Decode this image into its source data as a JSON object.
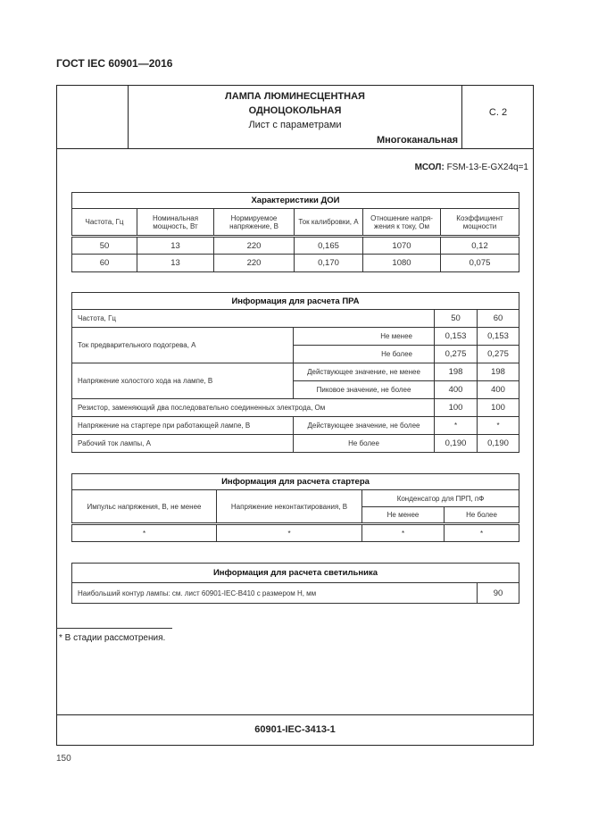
{
  "doc_id": "ГОСТ IEC 60901—2016",
  "header": {
    "title1": "ЛАМПА ЛЮМИНЕСЦЕНТНАЯ",
    "title2": "ОДНОЦОКОЛЬНАЯ",
    "subtitle": "Лист с параметрами",
    "type": "Многоканальная",
    "page": "С. 2"
  },
  "msol": {
    "label": "МСОЛ:",
    "value": "FSM-13-E-GX24q=1"
  },
  "t1": {
    "title": "Характеристики ДОИ",
    "headers": [
      "Частота, Гц",
      "Номинальная мощность, Вт",
      "Нормируемое напряжение, В",
      "Ток калибровки, А",
      "Отношение напря-жения к току, Ом",
      "Коэффициент мощности"
    ],
    "rows": [
      [
        "50",
        "13",
        "220",
        "0,165",
        "1070",
        "0,12"
      ],
      [
        "60",
        "13",
        "220",
        "0,170",
        "1080",
        "0,075"
      ]
    ]
  },
  "t2": {
    "title": "Информация для расчета ПРА",
    "freq": {
      "label": "Частота, Гц",
      "v1": "50",
      "v2": "60"
    },
    "preheat": {
      "label": "Ток предварительного подогрева, А",
      "min": "Не менее",
      "min_v1": "0,153",
      "min_v2": "0,153",
      "max": "Не более",
      "max_v1": "0,275",
      "max_v2": "0,275"
    },
    "ocv": {
      "label": "Напряжение холостого хода на лампе, В",
      "rms": "Действующее значение, не менее",
      "rms_v1": "198",
      "rms_v2": "198",
      "peak": "Пиковое значение, не более",
      "peak_v1": "400",
      "peak_v2": "400"
    },
    "resistor": {
      "label": "Резистор, заменяющий два последовательно соединенных электрода, Ом",
      "v1": "100",
      "v2": "100"
    },
    "starter_v": {
      "label": "Напряжение на стартере при работающей лампе, В",
      "cond": "Действующее значение, не более",
      "v1": "*",
      "v2": "*"
    },
    "current": {
      "label": "Рабочий ток лампы, А",
      "cond": "Не более",
      "v1": "0,190",
      "v2": "0,190"
    }
  },
  "t3": {
    "title": "Информация для расчета стартера",
    "h1": "Импульс напряжения, В, не менее",
    "h2": "Напряжение неконтактирования, В",
    "h3": "Конденсатор для ПРП, пФ",
    "h3a": "Не менее",
    "h3b": "Не более",
    "row": [
      "*",
      "*",
      "*",
      "*"
    ]
  },
  "t4": {
    "title": "Информация для расчета светильника",
    "label": "Наибольший контур лампы: см. лист 60901-IEC-B410 с размером H, мм",
    "value": "90"
  },
  "footnote": "* В стадии рассмотрения.",
  "sheet_code": "60901-IEC-3413-1",
  "page_number": "150"
}
